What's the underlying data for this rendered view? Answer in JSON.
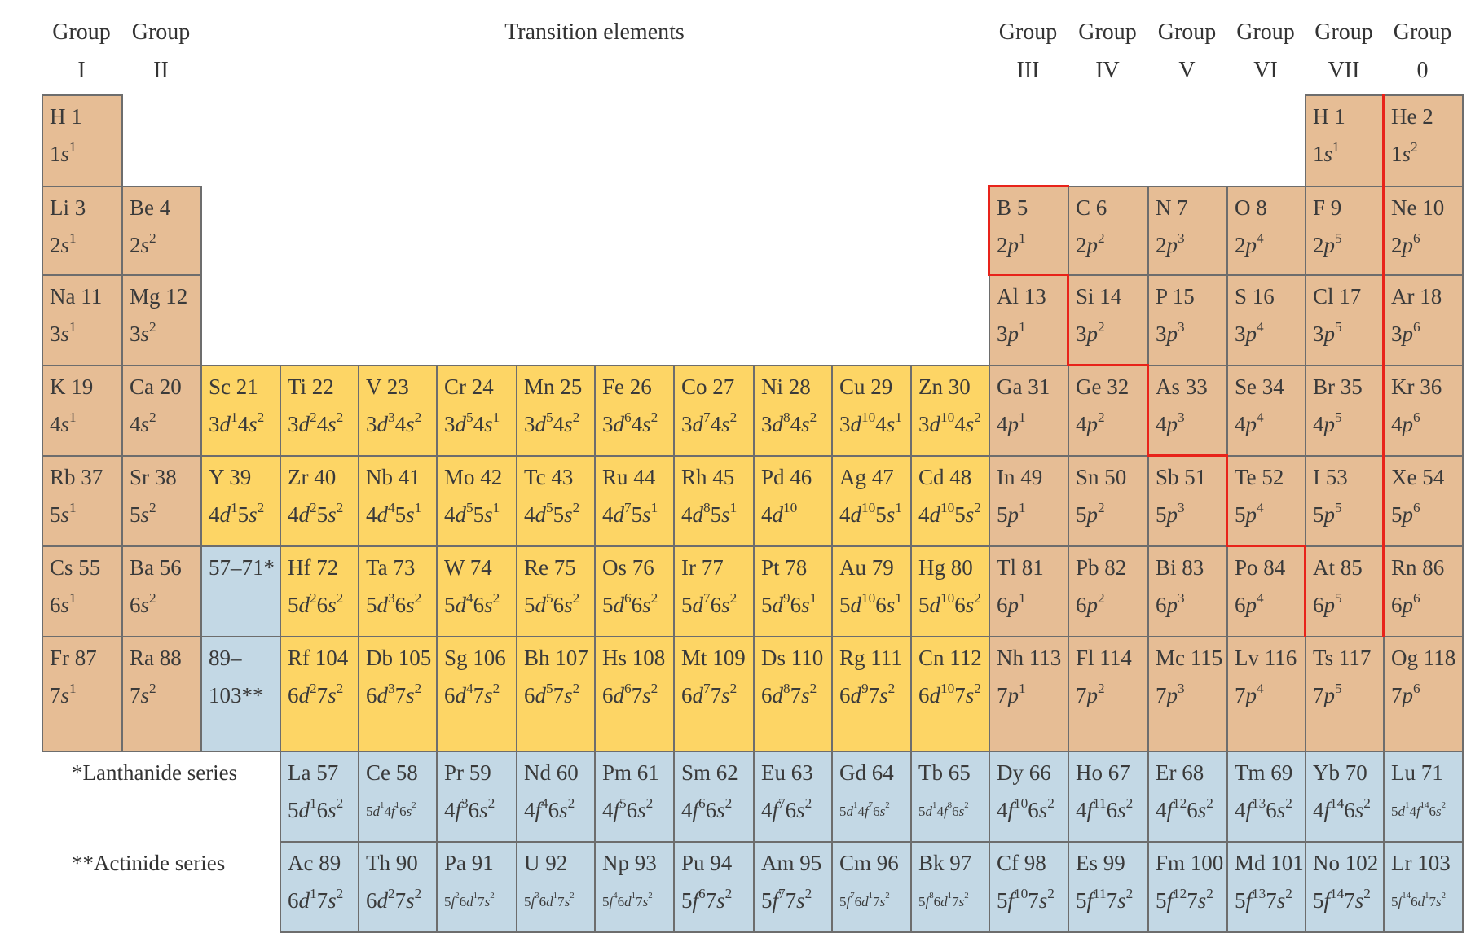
{
  "colors": {
    "main_group": "#e6bd95",
    "transition": "#fdd565",
    "f_block": "#c3d8e5",
    "border": "#6d6d6d",
    "divider": "#e8231a"
  },
  "headers": [
    {
      "key": "g1",
      "line1": "Group",
      "line2": "I"
    },
    {
      "key": "g2",
      "line1": "Group",
      "line2": "II"
    },
    {
      "key": "transition",
      "line1": "Transition elements",
      "line2": ""
    },
    {
      "key": "g3",
      "line1": "Group",
      "line2": "III"
    },
    {
      "key": "g4",
      "line1": "Group",
      "line2": "IV"
    },
    {
      "key": "g5",
      "line1": "Group",
      "line2": "V"
    },
    {
      "key": "g6",
      "line1": "Group",
      "line2": "VI"
    },
    {
      "key": "g7",
      "line1": "Group",
      "line2": "VII"
    },
    {
      "key": "g0",
      "line1": "Group",
      "line2": "0"
    }
  ],
  "series_labels": {
    "lanthanide": "*Lanthanide series",
    "actinide": "**Actinide series"
  },
  "elements": [
    {
      "sym": "H 1",
      "cfg": "1s^1",
      "block": "main_group",
      "row": 1,
      "col": 1
    },
    {
      "sym": "H 1",
      "cfg": "1s^1",
      "block": "main_group",
      "row": 1,
      "col": 17
    },
    {
      "sym": "He 2",
      "cfg": "1s^2",
      "block": "main_group",
      "row": 1,
      "col": 18
    },
    {
      "sym": "Li 3",
      "cfg": "2s^1",
      "block": "main_group",
      "row": 2,
      "col": 1
    },
    {
      "sym": "Be 4",
      "cfg": "2s^2",
      "block": "main_group",
      "row": 2,
      "col": 2
    },
    {
      "sym": "B 5",
      "cfg": "2p^1",
      "block": "main_group",
      "row": 2,
      "col": 13
    },
    {
      "sym": "C 6",
      "cfg": "2p^2",
      "block": "main_group",
      "row": 2,
      "col": 14
    },
    {
      "sym": "N 7",
      "cfg": "2p^3",
      "block": "main_group",
      "row": 2,
      "col": 15
    },
    {
      "sym": "O 8",
      "cfg": "2p^4",
      "block": "main_group",
      "row": 2,
      "col": 16
    },
    {
      "sym": "F 9",
      "cfg": "2p^5",
      "block": "main_group",
      "row": 2,
      "col": 17
    },
    {
      "sym": "Ne 10",
      "cfg": "2p^6",
      "block": "main_group",
      "row": 2,
      "col": 18
    },
    {
      "sym": "Na 11",
      "cfg": "3s^1",
      "block": "main_group",
      "row": 3,
      "col": 1
    },
    {
      "sym": "Mg 12",
      "cfg": "3s^2",
      "block": "main_group",
      "row": 3,
      "col": 2
    },
    {
      "sym": "Al 13",
      "cfg": "3p^1",
      "block": "main_group",
      "row": 3,
      "col": 13
    },
    {
      "sym": "Si 14",
      "cfg": "3p^2",
      "block": "main_group",
      "row": 3,
      "col": 14
    },
    {
      "sym": "P 15",
      "cfg": "3p^3",
      "block": "main_group",
      "row": 3,
      "col": 15
    },
    {
      "sym": "S 16",
      "cfg": "3p^4",
      "block": "main_group",
      "row": 3,
      "col": 16
    },
    {
      "sym": "Cl 17",
      "cfg": "3p^5",
      "block": "main_group",
      "row": 3,
      "col": 17
    },
    {
      "sym": "Ar 18",
      "cfg": "3p^6",
      "block": "main_group",
      "row": 3,
      "col": 18
    },
    {
      "sym": "K 19",
      "cfg": "4s^1",
      "block": "main_group",
      "row": 4,
      "col": 1
    },
    {
      "sym": "Ca 20",
      "cfg": "4s^2",
      "block": "main_group",
      "row": 4,
      "col": 2
    },
    {
      "sym": "Sc 21",
      "cfg": "3d^1 4s^2",
      "block": "transition",
      "row": 4,
      "col": 3
    },
    {
      "sym": "Ti 22",
      "cfg": "3d^2 4s^2",
      "block": "transition",
      "row": 4,
      "col": 4
    },
    {
      "sym": "V 23",
      "cfg": "3d^3 4s^2",
      "block": "transition",
      "row": 4,
      "col": 5
    },
    {
      "sym": "Cr 24",
      "cfg": "3d^5 4s^1",
      "block": "transition",
      "row": 4,
      "col": 6
    },
    {
      "sym": "Mn 25",
      "cfg": "3d^5 4s^2",
      "block": "transition",
      "row": 4,
      "col": 7
    },
    {
      "sym": "Fe 26",
      "cfg": "3d^6 4s^2",
      "block": "transition",
      "row": 4,
      "col": 8
    },
    {
      "sym": "Co 27",
      "cfg": "3d^7 4s^2",
      "block": "transition",
      "row": 4,
      "col": 9
    },
    {
      "sym": "Ni 28",
      "cfg": "3d^8 4s^2",
      "block": "transition",
      "row": 4,
      "col": 10
    },
    {
      "sym": "Cu  29",
      "cfg": "3d^10 4s^1",
      "block": "transition",
      "row": 4,
      "col": 11
    },
    {
      "sym": "Zn 30",
      "cfg": "3d^10 4s^2",
      "block": "transition",
      "row": 4,
      "col": 12
    },
    {
      "sym": "Ga 31",
      "cfg": "4p^1",
      "block": "main_group",
      "row": 4,
      "col": 13
    },
    {
      "sym": "Ge 32",
      "cfg": "4p^2",
      "block": "main_group",
      "row": 4,
      "col": 14
    },
    {
      "sym": "As 33",
      "cfg": "4p^3",
      "block": "main_group",
      "row": 4,
      "col": 15
    },
    {
      "sym": "Se 34",
      "cfg": "4p^4",
      "block": "main_group",
      "row": 4,
      "col": 16
    },
    {
      "sym": "Br 35",
      "cfg": "4p^5",
      "block": "main_group",
      "row": 4,
      "col": 17
    },
    {
      "sym": "Kr 36",
      "cfg": "4p^6",
      "block": "main_group",
      "row": 4,
      "col": 18
    },
    {
      "sym": "Rb 37",
      "cfg": "5s^1",
      "block": "main_group",
      "row": 5,
      "col": 1
    },
    {
      "sym": "Sr 38",
      "cfg": "5s^2",
      "block": "main_group",
      "row": 5,
      "col": 2
    },
    {
      "sym": "Y 39",
      "cfg": "4d^1 5s^2",
      "block": "transition",
      "row": 5,
      "col": 3
    },
    {
      "sym": "Zr 40",
      "cfg": "4d^2 5s^2",
      "block": "transition",
      "row": 5,
      "col": 4
    },
    {
      "sym": "Nb 41",
      "cfg": "4d^4 5s^1",
      "block": "transition",
      "row": 5,
      "col": 5
    },
    {
      "sym": "Mo 42",
      "cfg": "4d^5 5s^1",
      "block": "transition",
      "row": 5,
      "col": 6
    },
    {
      "sym": "Tc 43",
      "cfg": "4d^5 5s^2",
      "block": "transition",
      "row": 5,
      "col": 7
    },
    {
      "sym": "Ru 44",
      "cfg": "4d^7 5s^1",
      "block": "transition",
      "row": 5,
      "col": 8
    },
    {
      "sym": "Rh 45",
      "cfg": "4d^8 5s^1",
      "block": "transition",
      "row": 5,
      "col": 9
    },
    {
      "sym": "Pd 46",
      "cfg": "4d^10",
      "block": "transition",
      "row": 5,
      "col": 10
    },
    {
      "sym": "Ag 47",
      "cfg": "4d^10 5s^1",
      "block": "transition",
      "row": 5,
      "col": 11
    },
    {
      "sym": "Cd 48",
      "cfg": "4d^10 5s^2",
      "block": "transition",
      "row": 5,
      "col": 12
    },
    {
      "sym": "In 49",
      "cfg": "5p^1",
      "block": "main_group",
      "row": 5,
      "col": 13
    },
    {
      "sym": "Sn 50",
      "cfg": "5p^2",
      "block": "main_group",
      "row": 5,
      "col": 14
    },
    {
      "sym": "Sb 51",
      "cfg": "5p^3",
      "block": "main_group",
      "row": 5,
      "col": 15
    },
    {
      "sym": "Te 52",
      "cfg": "5p^4",
      "block": "main_group",
      "row": 5,
      "col": 16
    },
    {
      "sym": "I 53",
      "cfg": "5p^5",
      "block": "main_group",
      "row": 5,
      "col": 17
    },
    {
      "sym": "Xe 54",
      "cfg": "5p^6",
      "block": "main_group",
      "row": 5,
      "col": 18
    },
    {
      "sym": "Cs 55",
      "cfg": "6s^1",
      "block": "main_group",
      "row": 6,
      "col": 1
    },
    {
      "sym": "Ba 56",
      "cfg": "6s^2",
      "block": "main_group",
      "row": 6,
      "col": 2
    },
    {
      "sym": "57–71*",
      "cfg": "",
      "block": "f_block",
      "row": 6,
      "col": 3
    },
    {
      "sym": "Hf 72",
      "cfg": "5d^2 6s^2",
      "block": "transition",
      "row": 6,
      "col": 4
    },
    {
      "sym": "Ta 73",
      "cfg": "5d^3 6s^2",
      "block": "transition",
      "row": 6,
      "col": 5
    },
    {
      "sym": "W 74",
      "cfg": "5d^4 6s^2",
      "block": "transition",
      "row": 6,
      "col": 6
    },
    {
      "sym": "Re 75",
      "cfg": "5d^5 6s^2",
      "block": "transition",
      "row": 6,
      "col": 7
    },
    {
      "sym": "Os 76",
      "cfg": "5d^6 6s^2",
      "block": "transition",
      "row": 6,
      "col": 8
    },
    {
      "sym": "Ir 77",
      "cfg": "5d^7 6s^2",
      "block": "transition",
      "row": 6,
      "col": 9
    },
    {
      "sym": "Pt 78",
      "cfg": "5d^9 6s^1",
      "block": "transition",
      "row": 6,
      "col": 10
    },
    {
      "sym": "Au 79",
      "cfg": "5d^10 6s^1",
      "block": "transition",
      "row": 6,
      "col": 11
    },
    {
      "sym": "Hg 80",
      "cfg": "5d^10 6s^2",
      "block": "transition",
      "row": 6,
      "col": 12
    },
    {
      "sym": "Tl 81",
      "cfg": "6p^1",
      "block": "main_group",
      "row": 6,
      "col": 13
    },
    {
      "sym": "Pb 82",
      "cfg": "6p^2",
      "block": "main_group",
      "row": 6,
      "col": 14
    },
    {
      "sym": "Bi 83",
      "cfg": "6p^3",
      "block": "main_group",
      "row": 6,
      "col": 15
    },
    {
      "sym": "Po 84",
      "cfg": "6p^4",
      "block": "main_group",
      "row": 6,
      "col": 16
    },
    {
      "sym": "At 85",
      "cfg": "6p^5",
      "block": "main_group",
      "row": 6,
      "col": 17
    },
    {
      "sym": "Rn 86",
      "cfg": "6p^6",
      "block": "main_group",
      "row": 6,
      "col": 18
    },
    {
      "sym": "Fr 87",
      "cfg": "7s^1",
      "block": "main_group",
      "row": 7,
      "col": 1
    },
    {
      "sym": "Ra 88",
      "cfg": "7s^2",
      "block": "main_group",
      "row": 7,
      "col": 2
    },
    {
      "sym": "89–",
      "cfg": "103**",
      "block": "f_block",
      "row": 7,
      "col": 3
    },
    {
      "sym": "Rf 104",
      "cfg": "6d^2 7s^2",
      "block": "transition",
      "row": 7,
      "col": 4
    },
    {
      "sym": "Db 105",
      "cfg": "6d^3 7s^2",
      "block": "transition",
      "row": 7,
      "col": 5
    },
    {
      "sym": "Sg 106",
      "cfg": "6d^4 7s^2",
      "block": "transition",
      "row": 7,
      "col": 6
    },
    {
      "sym": "Bh 107",
      "cfg": "6d^5 7s^2",
      "block": "transition",
      "row": 7,
      "col": 7
    },
    {
      "sym": "Hs 108",
      "cfg": "6d^6 7s^2",
      "block": "transition",
      "row": 7,
      "col": 8
    },
    {
      "sym": "Mt 109",
      "cfg": "6d^7 7s^2",
      "block": "transition",
      "row": 7,
      "col": 9
    },
    {
      "sym": "Ds 110",
      "cfg": "6d^8 7s^2",
      "block": "transition",
      "row": 7,
      "col": 10
    },
    {
      "sym": "Rg 111",
      "cfg": "6d^9 7s^2",
      "block": "transition",
      "row": 7,
      "col": 11
    },
    {
      "sym": "Cn 112",
      "cfg": "6d^10 7s^2",
      "block": "transition",
      "row": 7,
      "col": 12
    },
    {
      "sym": "Nh 113",
      "cfg": "7p^1",
      "block": "main_group",
      "row": 7,
      "col": 13
    },
    {
      "sym": "Fl 114",
      "cfg": "7p^2",
      "block": "main_group",
      "row": 7,
      "col": 14
    },
    {
      "sym": "Mc 115",
      "cfg": "7p^3",
      "block": "main_group",
      "row": 7,
      "col": 15
    },
    {
      "sym": "Lv 116",
      "cfg": "7p^4",
      "block": "main_group",
      "row": 7,
      "col": 16
    },
    {
      "sym": "Ts 117",
      "cfg": "7p^5",
      "block": "main_group",
      "row": 7,
      "col": 17
    },
    {
      "sym": "Og 118",
      "cfg": "7p^6",
      "block": "main_group",
      "row": 7,
      "col": 18
    },
    {
      "sym": "La 57",
      "cfg": "5d^1 6s^2",
      "block": "f_block",
      "row": 8,
      "col": 4
    },
    {
      "sym": "Ce 58",
      "cfg": "5d^1 4f^1 6s^2",
      "block": "f_block",
      "row": 8,
      "col": 5,
      "small": true
    },
    {
      "sym": "Pr 59",
      "cfg": "4f^3 6s^2",
      "block": "f_block",
      "row": 8,
      "col": 6
    },
    {
      "sym": "Nd 60",
      "cfg": "4f^4 6s^2",
      "block": "f_block",
      "row": 8,
      "col": 7
    },
    {
      "sym": "Pm 61",
      "cfg": "4f^5 6s^2",
      "block": "f_block",
      "row": 8,
      "col": 8
    },
    {
      "sym": "Sm 62",
      "cfg": "4f^6 6s^2",
      "block": "f_block",
      "row": 8,
      "col": 9
    },
    {
      "sym": "Eu 63",
      "cfg": "4f^7 6s^2",
      "block": "f_block",
      "row": 8,
      "col": 10
    },
    {
      "sym": "Gd 64",
      "cfg": "5d^1 4f^7 6s^2",
      "block": "f_block",
      "row": 8,
      "col": 11,
      "small": true
    },
    {
      "sym": "Tb 65",
      "cfg": "5d^1 4f^8 6s^2",
      "block": "f_block",
      "row": 8,
      "col": 12,
      "small": true
    },
    {
      "sym": "Dy 66",
      "cfg": "4f^10 6s^2",
      "block": "f_block",
      "row": 8,
      "col": 13
    },
    {
      "sym": "Ho 67",
      "cfg": "4f^11 6s^2",
      "block": "f_block",
      "row": 8,
      "col": 14
    },
    {
      "sym": "Er 68",
      "cfg": "4f^12 6s^2",
      "block": "f_block",
      "row": 8,
      "col": 15
    },
    {
      "sym": "Tm 69",
      "cfg": "4f^13 6s^2",
      "block": "f_block",
      "row": 8,
      "col": 16
    },
    {
      "sym": "Yb 70",
      "cfg": "4f^14 6s^2",
      "block": "f_block",
      "row": 8,
      "col": 17
    },
    {
      "sym": "Lu 71",
      "cfg": "5d^1 4f^14 6s^2",
      "block": "f_block",
      "row": 8,
      "col": 18,
      "small": true
    },
    {
      "sym": "Ac 89",
      "cfg": "6d^1 7s^2",
      "block": "f_block",
      "row": 9,
      "col": 4
    },
    {
      "sym": "Th 90",
      "cfg": "6d^2 7s^2",
      "block": "f_block",
      "row": 9,
      "col": 5
    },
    {
      "sym": "Pa 91",
      "cfg": "5f^2 6d^1 7s^2",
      "block": "f_block",
      "row": 9,
      "col": 6,
      "small": true
    },
    {
      "sym": "U 92",
      "cfg": "5f^3 6d^1 7s^2",
      "block": "f_block",
      "row": 9,
      "col": 7,
      "small": true
    },
    {
      "sym": "Np 93",
      "cfg": "5f^4 6d^1 7s^2",
      "block": "f_block",
      "row": 9,
      "col": 8,
      "small": true
    },
    {
      "sym": "Pu 94",
      "cfg": "5f^6 7s^2",
      "block": "f_block",
      "row": 9,
      "col": 9
    },
    {
      "sym": "Am 95",
      "cfg": "5f^7 7s^2",
      "block": "f_block",
      "row": 9,
      "col": 10
    },
    {
      "sym": "Cm 96",
      "cfg": "5f^7 6d^1 7s^2",
      "block": "f_block",
      "row": 9,
      "col": 11,
      "small": true
    },
    {
      "sym": "Bk 97",
      "cfg": "5f^8 6d^1 7s^2",
      "block": "f_block",
      "row": 9,
      "col": 12,
      "small": true
    },
    {
      "sym": "Cf 98",
      "cfg": "5f^10 7s^2",
      "block": "f_block",
      "row": 9,
      "col": 13
    },
    {
      "sym": "Es 99",
      "cfg": "5f^11 7s^2",
      "block": "f_block",
      "row": 9,
      "col": 14
    },
    {
      "sym": "Fm 100",
      "cfg": "5f^12 7s^2",
      "block": "f_block",
      "row": 9,
      "col": 15
    },
    {
      "sym": "Md 101",
      "cfg": "5f^13 7s^2",
      "block": "f_block",
      "row": 9,
      "col": 16
    },
    {
      "sym": "No 102",
      "cfg": "5f^14 7s^2",
      "block": "f_block",
      "row": 9,
      "col": 17
    },
    {
      "sym": "Lr 103",
      "cfg": "5f^14 6d^1 7s^2",
      "block": "f_block",
      "row": 9,
      "col": 18,
      "small": true
    }
  ]
}
